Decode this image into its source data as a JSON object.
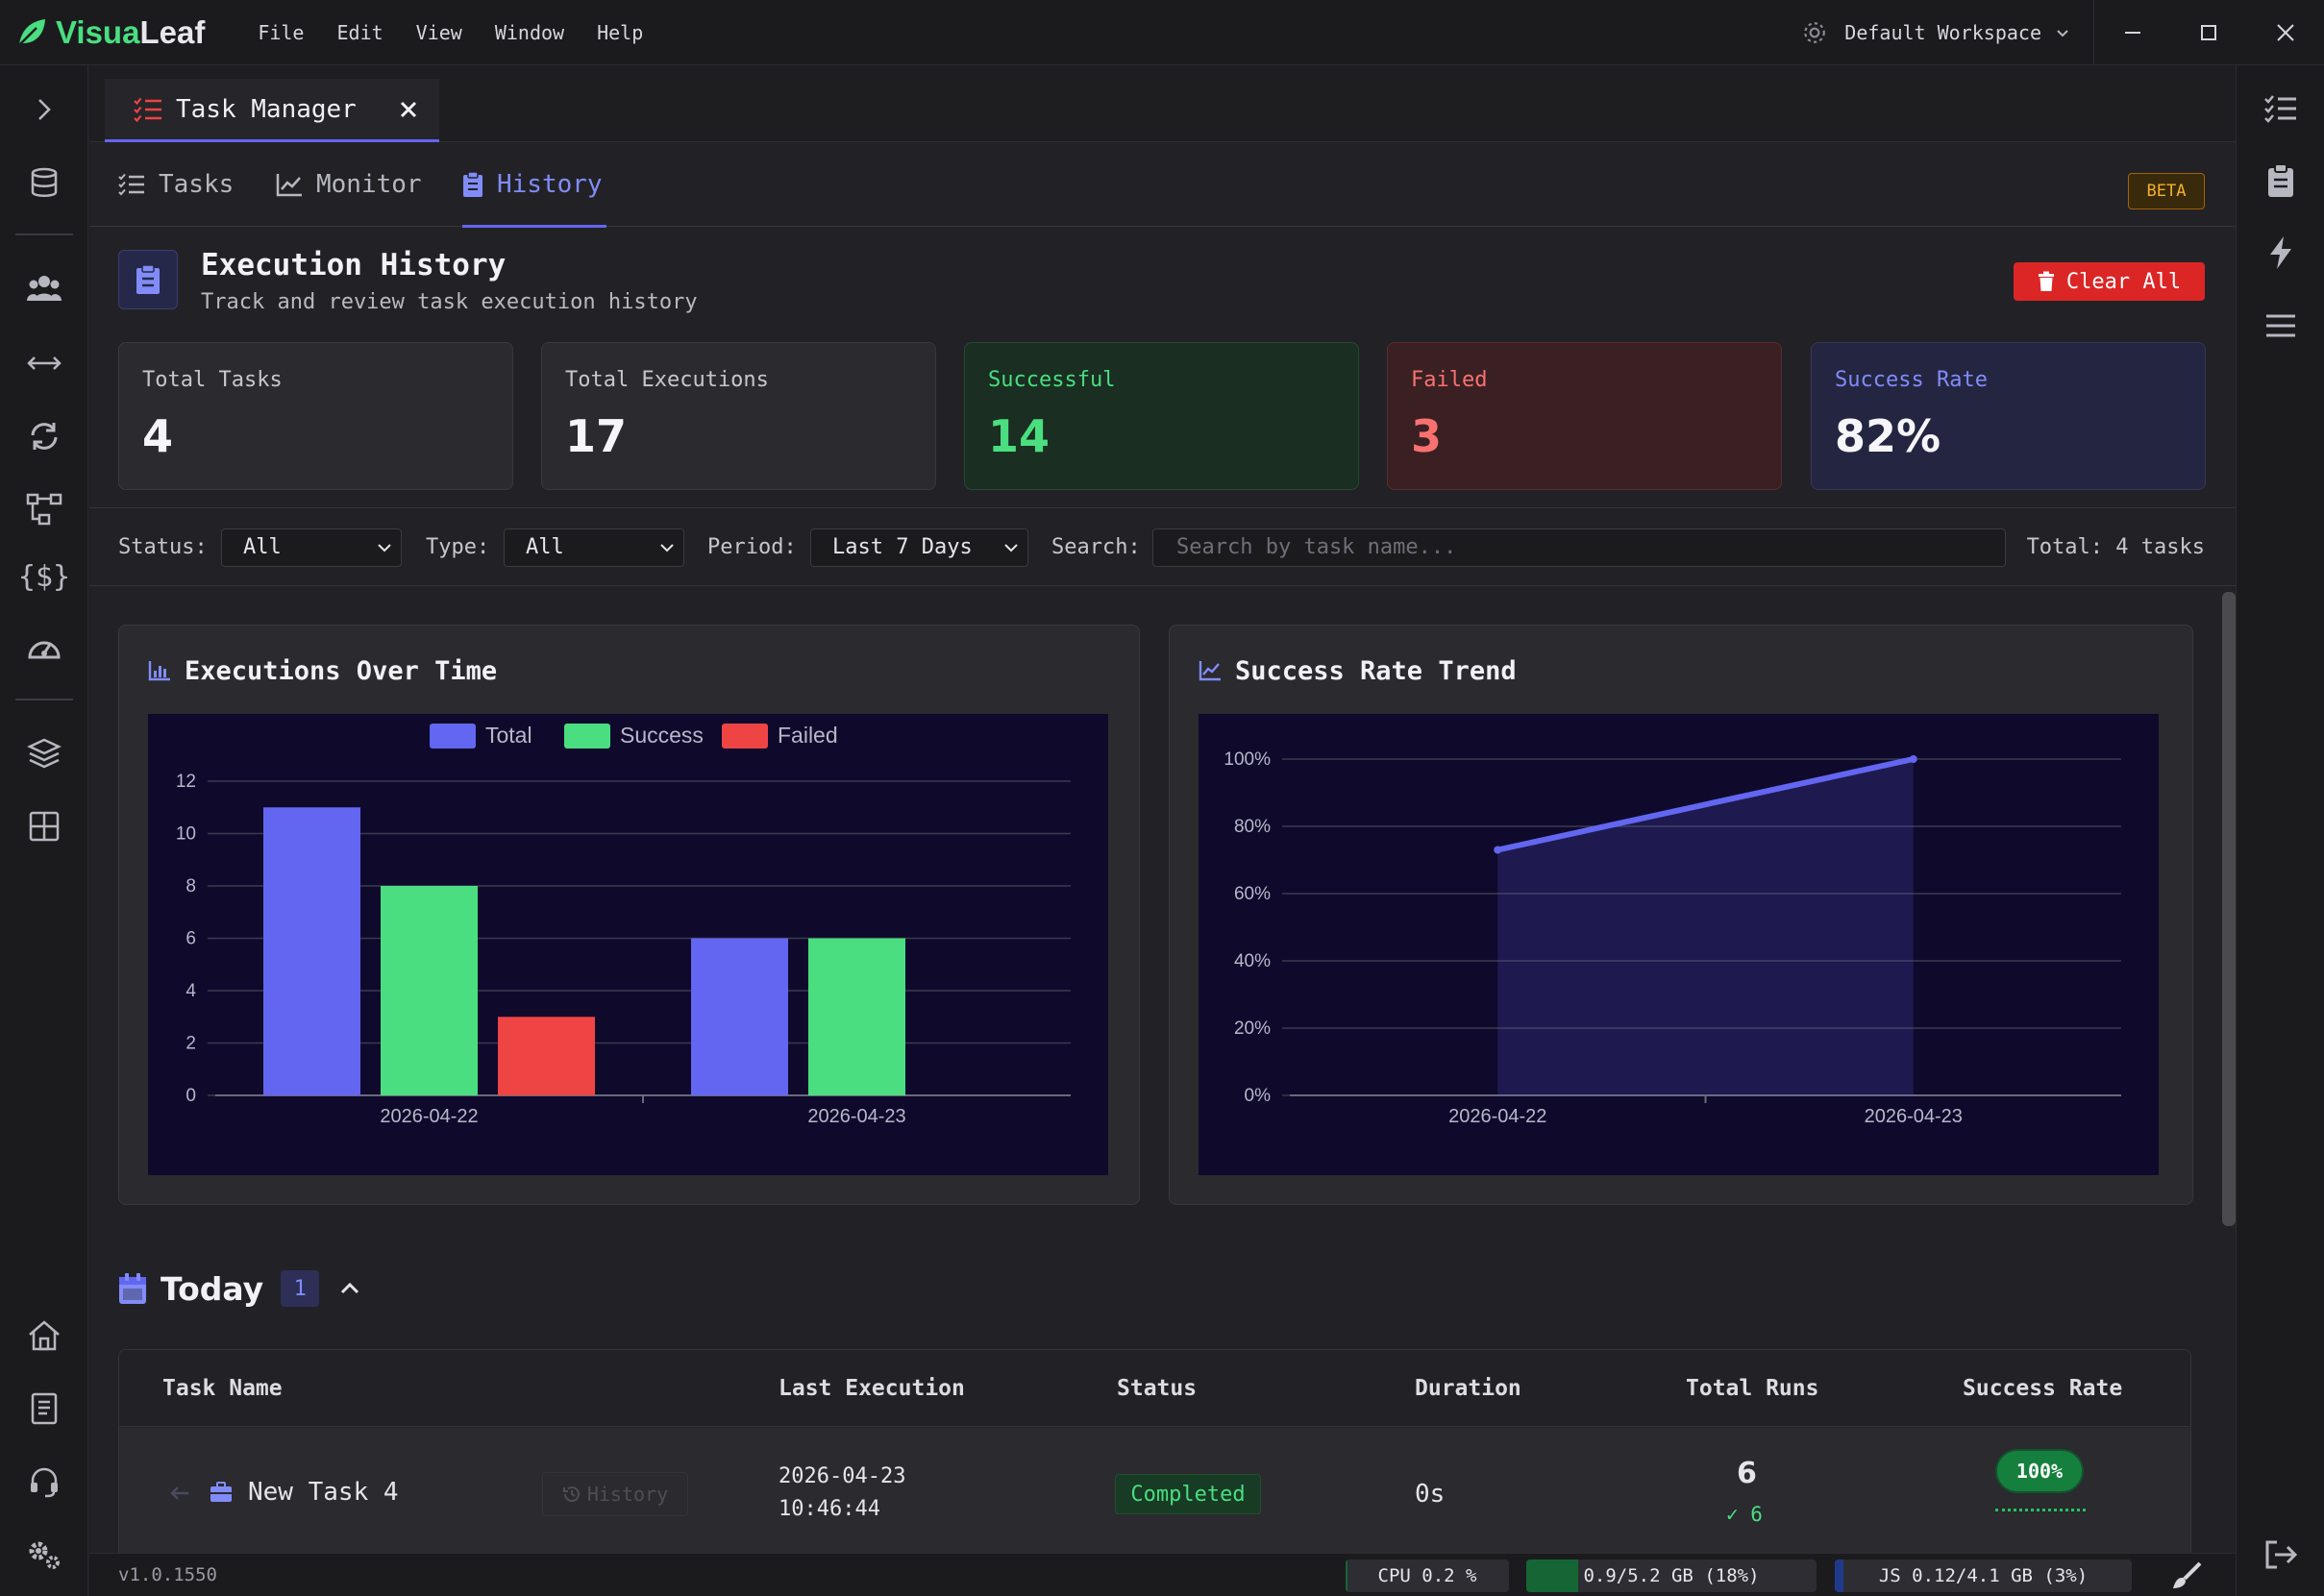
{
  "app": {
    "brand_prefix": "Visua",
    "brand_suffix": "Leaf",
    "menu": [
      "File",
      "Edit",
      "View",
      "Window",
      "Help"
    ],
    "workspace": "Default Workspace"
  },
  "doc_tab": {
    "label": "Task Manager"
  },
  "subtabs": [
    {
      "label": "Tasks"
    },
    {
      "label": "Monitor"
    },
    {
      "label": "History"
    }
  ],
  "beta_label": "BETA",
  "history_header": {
    "title": "Execution History",
    "subtitle": "Track and review task execution history",
    "clear_label": "Clear All"
  },
  "stats": [
    {
      "label": "Total Tasks",
      "value": "4"
    },
    {
      "label": "Total Executions",
      "value": "17"
    },
    {
      "label": "Successful",
      "value": "14"
    },
    {
      "label": "Failed",
      "value": "3"
    },
    {
      "label": "Success Rate",
      "value": "82%"
    }
  ],
  "filters": {
    "status_label": "Status:",
    "status_value": "All",
    "type_label": "Type:",
    "type_value": "All",
    "period_label": "Period:",
    "period_value": "Last 7 Days",
    "search_label": "Search:",
    "search_placeholder": "Search by task name...",
    "total": "Total: 4 tasks"
  },
  "chart_titles": [
    "Executions Over Time",
    "Success Rate Trend"
  ],
  "chart_data": [
    {
      "type": "bar",
      "categories": [
        "2026-04-22",
        "2026-04-23"
      ],
      "series": [
        {
          "name": "Total",
          "values": [
            11,
            6
          ],
          "color": "#6366f1"
        },
        {
          "name": "Success",
          "values": [
            8,
            6
          ],
          "color": "#4ade80"
        },
        {
          "name": "Failed",
          "values": [
            3,
            0
          ],
          "color": "#ef4444"
        }
      ],
      "ylim": [
        0,
        12
      ],
      "yticks": [
        "0",
        "2",
        "4",
        "6",
        "8",
        "10",
        "12"
      ],
      "legend": "top",
      "grid": true
    },
    {
      "type": "area",
      "x": [
        "2026-04-22",
        "2026-04-23"
      ],
      "series": [
        {
          "values": [
            73,
            100
          ],
          "color": "#6366f1"
        }
      ],
      "ylim": [
        0,
        100
      ],
      "yticks": [
        "0%",
        "20%",
        "40%",
        "60%",
        "80%",
        "100%"
      ],
      "grid": true
    }
  ],
  "today": {
    "title": "Today",
    "count": "1"
  },
  "table": {
    "headers": [
      "Task Name",
      "Last Execution",
      "Status",
      "Duration",
      "Total Runs",
      "Success Rate"
    ],
    "rows": [
      {
        "name": "New Task 4",
        "history_label": "History",
        "date": "2026-04-23",
        "time": "10:46:44",
        "status": "Completed",
        "duration": "0s",
        "total_runs": "6",
        "success_runs": "✓ 6",
        "success_rate": "100%"
      }
    ]
  },
  "statusbar": {
    "version": "v1.0.1550",
    "cpu": "CPU 0.2 %",
    "cpu_fraction": 0.002,
    "mem": "0.9/5.2 GB (18%)",
    "mem_fraction": 0.18,
    "js": "JS 0.12/4.1 GB (3%)",
    "js_fraction": 0.03
  }
}
